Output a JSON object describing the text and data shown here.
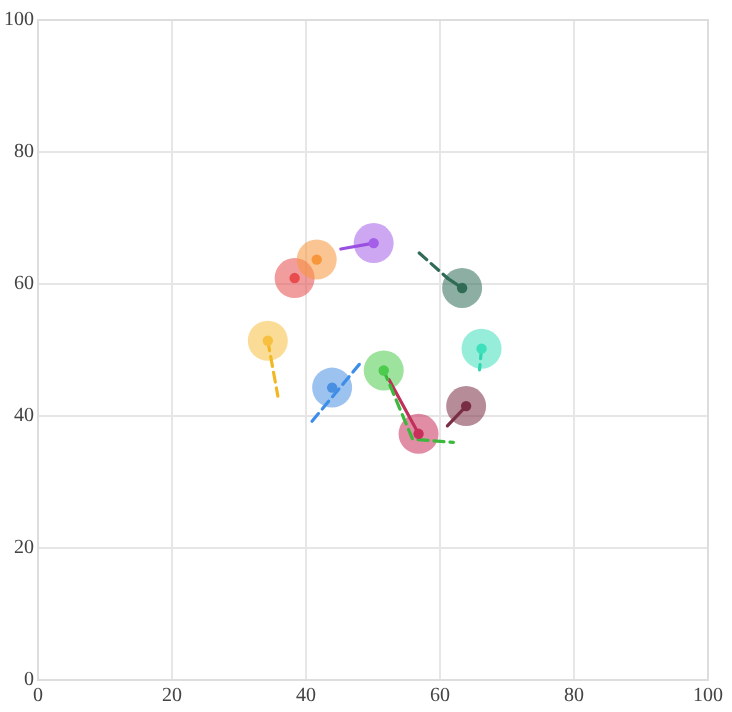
{
  "chart_data": {
    "type": "scatter",
    "xlim": [
      0,
      100
    ],
    "ylim": [
      0,
      100
    ],
    "xticks": [
      0,
      20,
      40,
      60,
      80,
      100
    ],
    "yticks": [
      0,
      20,
      40,
      60,
      80,
      100
    ],
    "grid": true,
    "legend": false,
    "marker": "circle",
    "series": [
      {
        "type": "line",
        "line_style": "solid",
        "color": "#9b4fe0",
        "x": [
          45.2,
          50.1
        ],
        "values": [
          65.3,
          66.2
        ]
      },
      {
        "type": "line",
        "line_style": "solid",
        "color": "#2f6b55",
        "x": [
          61.1,
          63.3
        ],
        "values": [
          60.9,
          59.4
        ]
      },
      {
        "type": "line",
        "line_style": "dashed",
        "marker": "none",
        "color": "#2f6b55",
        "x": [
          56.9,
          61.1
        ],
        "values": [
          64.7,
          60.9
        ]
      },
      {
        "type": "line",
        "line_style": "dashed",
        "color": "#f2b824",
        "x": [
          34.3,
          35.8
        ],
        "values": [
          51.4,
          43.0
        ]
      },
      {
        "type": "line",
        "line_style": "dashed",
        "color": "#2fd6b0",
        "x": [
          66.2,
          65.9
        ],
        "values": [
          50.2,
          47.0
        ]
      },
      {
        "type": "line",
        "line_style": "dashed",
        "marker": "none",
        "color": "#3d8ee8",
        "x": [
          40.9,
          48.1
        ],
        "values": [
          39.2,
          48.0
        ]
      },
      {
        "type": "line",
        "line_style": "dashed",
        "marker": "none",
        "color": "#3cb83c",
        "x": [
          51.6,
          55.9,
          62.0
        ],
        "values": [
          46.9,
          36.5,
          36.0
        ]
      },
      {
        "type": "line",
        "line_style": "solid",
        "color": "#c0305a",
        "x": [
          52.4,
          56.8
        ],
        "values": [
          45.5,
          37.3
        ]
      },
      {
        "type": "line",
        "line_style": "solid",
        "color": "#7a2e45",
        "x": [
          61.1,
          63.9
        ],
        "values": [
          38.5,
          41.5
        ]
      },
      {
        "color": "#a45ee8",
        "x": [
          50.1
        ],
        "values": [
          66.2
        ]
      },
      {
        "color": "#f7963a",
        "x": [
          41.6
        ],
        "values": [
          63.7
        ]
      },
      {
        "color": "#e84c4c",
        "x": [
          38.3
        ],
        "values": [
          60.9
        ]
      },
      {
        "color": "#2f6b55",
        "x": [
          63.3
        ],
        "values": [
          59.4
        ]
      },
      {
        "color": "#f7c040",
        "x": [
          34.3
        ],
        "values": [
          51.4
        ]
      },
      {
        "color": "#3fe0bc",
        "x": [
          66.2
        ],
        "values": [
          50.2
        ]
      },
      {
        "color": "#4a90e2",
        "x": [
          43.9
        ],
        "values": [
          44.3
        ]
      },
      {
        "color": "#4ccb4c",
        "x": [
          51.6
        ],
        "values": [
          46.9
        ]
      },
      {
        "color": "#c8305c",
        "x": [
          56.8
        ],
        "values": [
          37.3
        ]
      },
      {
        "color": "#7a2e45",
        "x": [
          63.9
        ],
        "values": [
          41.5
        ]
      }
    ]
  }
}
